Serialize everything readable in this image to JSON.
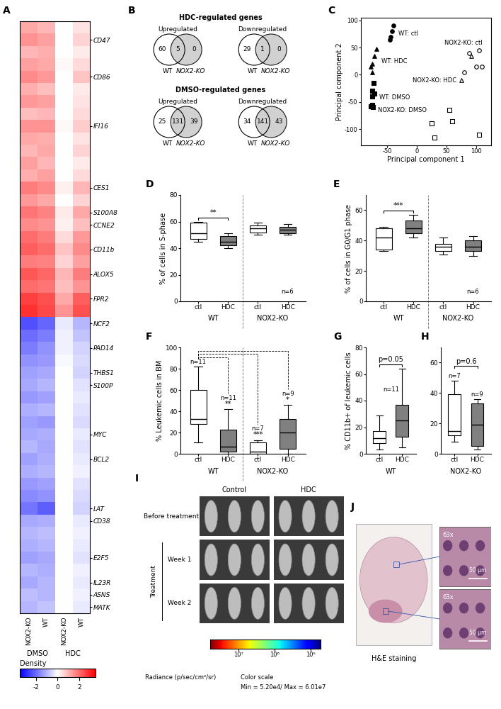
{
  "chart_data": [
    {
      "panel": "A",
      "type": "heatmap",
      "columns": [
        "NOX2-KO",
        "WT",
        "NOX2-KO",
        "WT"
      ],
      "column_groups": [
        {
          "name": "DMSO",
          "span": [
            0,
            1
          ]
        },
        {
          "name": "HDC",
          "span": [
            2,
            3
          ]
        }
      ],
      "row_labels": [
        null,
        "CD47",
        null,
        null,
        "CD86",
        null,
        null,
        null,
        "IFI16",
        null,
        null,
        null,
        null,
        "CES1",
        null,
        "S100A8",
        "CCNE2",
        null,
        "CD11b",
        null,
        "ALOX5",
        null,
        "FPR2",
        null,
        "NCF2",
        null,
        "PAD14",
        null,
        "THBS1",
        "S100P",
        null,
        null,
        null,
        "MYC",
        null,
        "BCL2",
        null,
        null,
        null,
        "LAT",
        "CD38",
        null,
        null,
        "E2F5",
        null,
        "IL23R",
        "ASNS",
        "MATK"
      ],
      "cells": [
        [
          1.2,
          1.0,
          0.0,
          0.4
        ],
        [
          1.5,
          1.3,
          0.0,
          0.6
        ],
        [
          1.0,
          1.1,
          0.0,
          0.3
        ],
        [
          1.3,
          1.2,
          0.1,
          0.5
        ],
        [
          1.6,
          1.4,
          0.0,
          0.8
        ],
        [
          1.1,
          0.9,
          0.0,
          0.3
        ],
        [
          1.4,
          1.3,
          0.0,
          0.4
        ],
        [
          0.9,
          1.0,
          0.0,
          0.5
        ],
        [
          1.5,
          1.5,
          0.1,
          0.7
        ],
        [
          1.2,
          1.1,
          0.0,
          0.4
        ],
        [
          1.0,
          1.2,
          0.0,
          0.6
        ],
        [
          1.3,
          1.0,
          0.0,
          0.3
        ],
        [
          1.1,
          1.3,
          0.0,
          0.5
        ],
        [
          1.8,
          1.6,
          0.2,
          1.0
        ],
        [
          1.4,
          1.2,
          0.0,
          0.6
        ],
        [
          1.9,
          1.7,
          0.3,
          1.2
        ],
        [
          1.6,
          1.5,
          0.2,
          0.9
        ],
        [
          2.0,
          1.8,
          0.5,
          1.4
        ],
        [
          2.2,
          2.0,
          0.8,
          1.6
        ],
        [
          1.8,
          1.7,
          0.6,
          1.3
        ],
        [
          2.3,
          2.1,
          1.0,
          1.8
        ],
        [
          2.0,
          1.9,
          0.9,
          1.5
        ],
        [
          2.6,
          2.4,
          1.2,
          2.2
        ],
        [
          2.8,
          2.5,
          1.5,
          2.4
        ],
        [
          -2.4,
          -2.1,
          -0.3,
          -1.0
        ],
        [
          -2.0,
          -1.8,
          -0.2,
          -0.8
        ],
        [
          -1.8,
          -1.5,
          -0.2,
          -0.6
        ],
        [
          -1.5,
          -1.4,
          -0.1,
          -0.5
        ],
        [
          -1.3,
          -1.2,
          0.0,
          -0.6
        ],
        [
          -1.2,
          -1.0,
          0.0,
          -0.4
        ],
        [
          -1.4,
          -1.3,
          0.0,
          -0.3
        ],
        [
          -1.1,
          -1.0,
          0.0,
          -0.4
        ],
        [
          -1.3,
          -1.4,
          0.0,
          -0.5
        ],
        [
          -1.2,
          -1.1,
          0.0,
          -0.3
        ],
        [
          -1.0,
          -1.2,
          0.0,
          -0.4
        ],
        [
          -1.3,
          -1.1,
          0.0,
          -0.3
        ],
        [
          -1.1,
          -1.0,
          0.0,
          -0.2
        ],
        [
          -1.4,
          -1.3,
          0.0,
          -0.4
        ],
        [
          -1.6,
          -1.5,
          0.0,
          -0.5
        ],
        [
          -1.9,
          -2.2,
          0.0,
          -0.6
        ],
        [
          -1.2,
          -1.1,
          0.0,
          -0.3
        ],
        [
          -1.0,
          -0.9,
          0.0,
          -0.2
        ],
        [
          -1.1,
          -1.0,
          0.0,
          -0.3
        ],
        [
          -1.3,
          -1.2,
          0.0,
          -0.4
        ],
        [
          -1.0,
          -1.1,
          0.0,
          -0.2
        ],
        [
          -1.2,
          -1.0,
          0.0,
          -0.3
        ],
        [
          -0.9,
          -1.0,
          0.0,
          -0.2
        ],
        [
          -1.0,
          -0.8,
          0.0,
          -0.3
        ]
      ],
      "colorbar": {
        "label": "Density",
        "range": [
          -3.5,
          3.5
        ],
        "ticks": [
          -2,
          0,
          2
        ]
      }
    },
    {
      "panel": "B",
      "type": "venn",
      "groups": [
        {
          "title": "HDC-regulated genes",
          "diagrams": [
            {
              "title": "Upregulated",
              "sets": [
                "WT",
                "NOX2-KO"
              ],
              "values": [
                60,
                5,
                0
              ]
            },
            {
              "title": "Downregulated",
              "sets": [
                "WT",
                "NOX2-KO"
              ],
              "values": [
                29,
                1,
                0
              ]
            }
          ]
        },
        {
          "title": "DMSO-regulated genes",
          "diagrams": [
            {
              "title": "Upregulated",
              "sets": [
                "WT",
                "NOX2-KO"
              ],
              "values": [
                25,
                131,
                39
              ]
            },
            {
              "title": "Downregulated",
              "sets": [
                "WT",
                "NOX2-KO"
              ],
              "values": [
                34,
                141,
                43
              ]
            }
          ]
        }
      ]
    },
    {
      "panel": "C",
      "type": "scatter",
      "xlabel": "Principal component 1",
      "ylabel": "Principal component 2",
      "xlim": [
        -95,
        125
      ],
      "xticks": [
        -50,
        0,
        50,
        100
      ],
      "ylim": [
        -130,
        105
      ],
      "yticks": [
        -100,
        -50,
        0,
        50,
        100
      ],
      "series": [
        {
          "label": "WT: ctl",
          "marker": "circle",
          "color": "#000000",
          "x": [
            -40,
            -42,
            -46,
            -44
          ],
          "y": [
            90,
            80,
            65,
            70
          ]
        },
        {
          "label": "WT: HDC",
          "marker": "triangle",
          "color": "#000000",
          "x": [
            -68,
            -72,
            -75,
            -78,
            -76
          ],
          "y": [
            48,
            35,
            20,
            15,
            5
          ]
        },
        {
          "label": "WT: DMSO",
          "marker": "square",
          "color": "#000000",
          "x": [
            -73,
            -75,
            -72,
            -76,
            -75,
            -78,
            -74
          ],
          "y": [
            -15,
            -30,
            -35,
            -40,
            -55,
            -58,
            -60
          ]
        },
        {
          "label": "NOX2-KO: ctl",
          "marker": "circle-open",
          "color": "#000000",
          "x": [
            88,
            105,
            100,
            110,
            80
          ],
          "y": [
            40,
            45,
            15,
            15,
            5
          ]
        },
        {
          "label": "NOX2-KO: HDC",
          "marker": "triangle-open",
          "color": "#000000",
          "x": [
            92,
            75
          ],
          "y": [
            35,
            -10
          ]
        },
        {
          "label": "NOX2-KO: DMSO",
          "marker": "square-open",
          "color": "#000000",
          "x": [
            55,
            60,
            25,
            30,
            105
          ],
          "y": [
            -65,
            -85,
            -90,
            -115,
            -110
          ]
        }
      ]
    },
    {
      "panel": "D",
      "type": "box",
      "ylabel": "% of cells in S-phase",
      "ylim": [
        0,
        80
      ],
      "yticks": [
        0,
        20,
        40,
        60,
        80
      ],
      "categories": [
        "ctl",
        "HDC",
        "ctl",
        "HDC"
      ],
      "groups": [
        {
          "name": "WT",
          "span": [
            0,
            1
          ]
        },
        {
          "name": "NOX2-KO",
          "span": [
            2,
            3
          ]
        }
      ],
      "boxes": [
        [
          45,
          47,
          51,
          59,
          60
        ],
        [
          40,
          42,
          45,
          49,
          51
        ],
        [
          50,
          52,
          55,
          57,
          59
        ],
        [
          50,
          51,
          54,
          56,
          58
        ]
      ],
      "colors": [
        "#ffffff",
        "#808080",
        "#ffffff",
        "#808080"
      ],
      "comparisons": [
        {
          "pair": [
            0,
            1
          ],
          "text": "**"
        }
      ],
      "n_label": "n=6"
    },
    {
      "panel": "E",
      "type": "box",
      "ylabel": "% of cells in G0/G1 phase",
      "ylim": [
        0,
        70
      ],
      "yticks": [
        0,
        20,
        40,
        60
      ],
      "categories": [
        "ctl",
        "HDC",
        "ctl",
        "HDC"
      ],
      "groups": [
        {
          "name": "WT",
          "span": [
            0,
            1
          ]
        },
        {
          "name": "NOX2-KO",
          "span": [
            2,
            3
          ]
        }
      ],
      "boxes": [
        [
          33,
          34,
          42,
          48,
          49
        ],
        [
          42,
          45,
          48,
          53,
          57
        ],
        [
          31,
          33,
          36,
          38,
          42
        ],
        [
          30,
          33,
          36,
          40,
          43
        ]
      ],
      "colors": [
        "#ffffff",
        "#808080",
        "#ffffff",
        "#808080"
      ],
      "comparisons": [
        {
          "pair": [
            0,
            1
          ],
          "text": "***"
        }
      ],
      "n_label": "n=6"
    },
    {
      "panel": "F",
      "type": "box",
      "ylabel": "% Leukemic cells in BM",
      "ylim": [
        0,
        100
      ],
      "yticks": [
        0,
        20,
        40,
        60,
        80,
        100
      ],
      "categories": [
        "ctl",
        "HDC",
        "ctl",
        "HDC"
      ],
      "groups": [
        {
          "name": "WT",
          "span": [
            0,
            1
          ]
        },
        {
          "name": "NOX2-KO",
          "span": [
            2,
            3
          ]
        }
      ],
      "boxes": [
        [
          11,
          28,
          33,
          60,
          82
        ],
        [
          0,
          2,
          7,
          23,
          42
        ],
        [
          0,
          0,
          2,
          11,
          13
        ],
        [
          0,
          5,
          20,
          33,
          46
        ]
      ],
      "colors": [
        "#ffffff",
        "#808080",
        "#ffffff",
        "#808080"
      ],
      "line_style": "dashed",
      "comparisons": [
        {
          "pair": [
            0,
            1
          ],
          "text": "**"
        },
        {
          "pair": [
            0,
            2
          ],
          "text": "***"
        },
        {
          "pair": [
            0,
            3
          ],
          "text": "*"
        }
      ],
      "n_labels": [
        "n=11",
        "n=11",
        "n=7",
        "n=9"
      ]
    },
    {
      "panel": "G",
      "type": "box",
      "ylabel": "% CD11b+ of leukemic cells",
      "ylim": [
        0,
        80
      ],
      "yticks": [
        0,
        20,
        40,
        60,
        80
      ],
      "categories": [
        "ctl",
        "HDC"
      ],
      "groups": [
        {
          "name": "WT",
          "span": [
            0,
            1
          ]
        }
      ],
      "boxes": [
        [
          3,
          8,
          12,
          17,
          29
        ],
        [
          5,
          13,
          25,
          37,
          64
        ]
      ],
      "colors": [
        "#ffffff",
        "#808080"
      ],
      "comparisons": [
        {
          "pair": [
            0,
            1
          ],
          "text": "p=0.05"
        }
      ],
      "n_label": "n=11"
    },
    {
      "panel": "H",
      "type": "box",
      "ylim": [
        0,
        70
      ],
      "yticks": [
        0,
        20,
        40,
        60
      ],
      "categories": [
        "ctl",
        "HDC"
      ],
      "groups": [
        {
          "name": "NOX2-KO",
          "span": [
            0,
            1
          ]
        }
      ],
      "boxes": [
        [
          8,
          12,
          15,
          39,
          48
        ],
        [
          3,
          5,
          19,
          33,
          36
        ]
      ],
      "colors": [
        "#ffffff",
        "#808080"
      ],
      "comparisons": [
        {
          "pair": [
            0,
            1
          ],
          "text": "p=0.6"
        }
      ],
      "n_labels": [
        "n=7",
        "n=9"
      ]
    },
    {
      "panel": "I",
      "type": "image",
      "columns": [
        "Control",
        "HDC"
      ],
      "rows": [
        "Before treatment",
        "Week 1",
        "Week 2"
      ],
      "row_group": {
        "name": "Treatment",
        "rows": [
          1,
          2
        ]
      },
      "colorbar": {
        "label": "Radiance (p/sec/cm²/sr)",
        "range": [
          60100000,
          52000
        ],
        "ticks": [
          {
            "value": 10000000,
            "label": "10⁷"
          },
          {
            "value": 1000000,
            "label": "10⁶"
          },
          {
            "value": 100000,
            "label": "10⁵"
          }
        ],
        "caption_lines": [
          "Color scale",
          "Min = 5.20e4/ Max = 6.01e7"
        ]
      }
    },
    {
      "panel": "J",
      "type": "micrograph",
      "caption": "H&E staining",
      "insets": [
        {
          "magnification": "63x",
          "scale_bar": "50 µm"
        },
        {
          "magnification": "63x",
          "scale_bar": "50 µm"
        }
      ]
    }
  ]
}
